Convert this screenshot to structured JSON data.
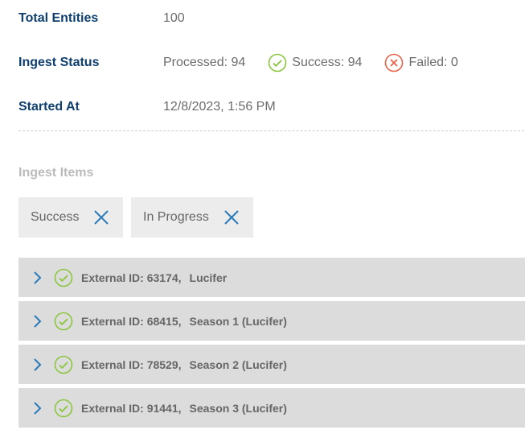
{
  "summary": {
    "total_label": "Total Entities",
    "total_value": "100",
    "status_label": "Ingest Status",
    "processed": "Processed: 94",
    "success": "Success: 94",
    "failed": "Failed: 0",
    "started_label": "Started At",
    "started_value": "12/8/2023, 1:56 PM"
  },
  "section_title": "Ingest Items",
  "filters": [
    {
      "label": "Success"
    },
    {
      "label": "In Progress"
    }
  ],
  "items": [
    {
      "id": "External ID: 63174,",
      "name": "Lucifer"
    },
    {
      "id": "External ID: 68415,",
      "name": "Season 1 (Lucifer)"
    },
    {
      "id": "External ID: 78529,",
      "name": "Season 2 (Lucifer)"
    },
    {
      "id": "External ID: 91441,",
      "name": "Season 3 (Lucifer)"
    }
  ],
  "colors": {
    "label": "#0e3f6e",
    "success": "#8cc63f",
    "failed": "#e8624a",
    "accent": "#2a7ab8"
  }
}
